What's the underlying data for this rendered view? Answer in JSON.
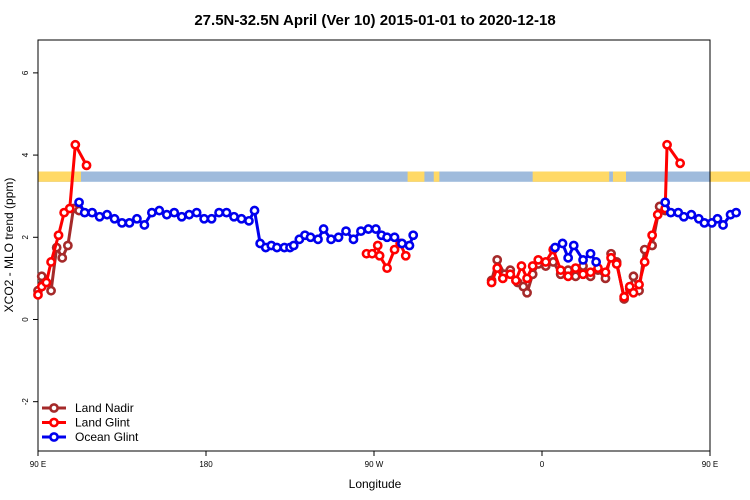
{
  "chart_data": {
    "type": "line",
    "title": "27.5N-32.5N April (Ver 10)   2015-01-01 to 2020-12-18",
    "xlabel": "Longitude",
    "ylabel": "XCO2 - MLO trend (ppm)",
    "xlim": [
      90,
      450
    ],
    "ylim": [
      -3.2,
      6.8
    ],
    "x_ticks": [
      {
        "value": 90,
        "label": "90 E"
      },
      {
        "value": 180,
        "label": "180"
      },
      {
        "value": 270,
        "label": "90 W"
      },
      {
        "value": 360,
        "label": "0"
      },
      {
        "value": 450,
        "label": "90 E"
      },
      {
        "value": 540,
        "label": "180"
      }
    ],
    "y_ticks": [
      {
        "value": -2,
        "label": "-2"
      },
      {
        "value": 0,
        "label": "0"
      },
      {
        "value": 2,
        "label": "2"
      },
      {
        "value": 4,
        "label": "4"
      },
      {
        "value": 6,
        "label": "6"
      }
    ],
    "land_mask_band": {
      "y_range": [
        3.35,
        3.6
      ],
      "land_color": "#ffd966",
      "ocean_color": "#9fbbdc",
      "land_segments": [
        [
          90,
          113
        ],
        [
          288,
          297
        ],
        [
          302,
          305
        ],
        [
          355,
          396
        ],
        [
          398,
          405
        ],
        [
          450,
          473
        ]
      ]
    },
    "legend_position": "bottom-left",
    "series": [
      {
        "name": "Land Nadir",
        "color": "#a52a2a",
        "points": [
          [
            [
              90,
              0.7
            ],
            [
              92,
              1.05
            ],
            [
              94.5,
              0.9
            ],
            [
              97,
              0.7
            ],
            [
              100,
              1.75
            ],
            [
              103,
              1.5
            ],
            [
              106,
              1.8
            ],
            [
              109,
              2.7
            ],
            [
              112,
              2.65
            ]
          ],
          [
            [
              333,
              0.95
            ],
            [
              336,
              1.45
            ],
            [
              340,
              1.1
            ],
            [
              343,
              1.2
            ],
            [
              347,
              0.9
            ],
            [
              350,
              0.8
            ],
            [
              352,
              0.65
            ],
            [
              355,
              1.1
            ],
            [
              358,
              1.35
            ],
            [
              362,
              1.3
            ],
            [
              366,
              1.4
            ],
            [
              370,
              1.1
            ],
            [
              374,
              1.2
            ],
            [
              378,
              1.05
            ],
            [
              382,
              1.3
            ],
            [
              386,
              1.05
            ],
            [
              390,
              1.2
            ],
            [
              394,
              1.0
            ],
            [
              397,
              1.6
            ],
            [
              400,
              1.4
            ],
            [
              404,
              0.5
            ],
            [
              407,
              0.75
            ],
            [
              409,
              1.05
            ],
            [
              412,
              0.7
            ],
            [
              415,
              1.7
            ],
            [
              419,
              1.8
            ],
            [
              423,
              2.75
            ],
            [
              426,
              2.65
            ]
          ]
        ]
      },
      {
        "name": "Land Glint",
        "color": "#ff0000",
        "points": [
          [
            [
              90,
              0.6
            ],
            [
              92,
              0.8
            ],
            [
              94.5,
              0.9
            ],
            [
              97,
              1.4
            ],
            [
              101,
              2.05
            ],
            [
              104,
              2.6
            ],
            [
              107,
              2.7
            ],
            [
              110,
              4.25
            ],
            [
              116,
              3.75
            ]
          ],
          [
            [
              266,
              1.6
            ],
            [
              269,
              1.6
            ],
            [
              272,
              1.8
            ],
            [
              273,
              1.55
            ],
            [
              277,
              1.25
            ],
            [
              281,
              1.7
            ],
            [
              284,
              1.85
            ],
            [
              287,
              1.55
            ]
          ],
          [
            [
              333,
              0.9
            ],
            [
              336,
              1.25
            ],
            [
              339,
              1.0
            ],
            [
              343,
              1.1
            ],
            [
              346,
              0.95
            ],
            [
              349,
              1.3
            ],
            [
              352,
              1.0
            ],
            [
              355,
              1.3
            ],
            [
              358,
              1.45
            ],
            [
              362,
              1.4
            ],
            [
              366,
              1.7
            ],
            [
              370,
              1.2
            ],
            [
              374,
              1.05
            ],
            [
              378,
              1.25
            ],
            [
              382,
              1.1
            ],
            [
              386,
              1.15
            ],
            [
              390,
              1.25
            ],
            [
              394,
              1.15
            ],
            [
              397,
              1.5
            ],
            [
              400,
              1.35
            ],
            [
              404,
              0.55
            ],
            [
              407,
              0.8
            ],
            [
              409,
              0.65
            ],
            [
              412,
              0.85
            ],
            [
              415,
              1.4
            ],
            [
              419,
              2.05
            ],
            [
              422,
              2.55
            ],
            [
              426,
              2.7
            ],
            [
              427,
              4.25
            ],
            [
              434,
              3.8
            ]
          ]
        ]
      },
      {
        "name": "Ocean Glint",
        "color": "#0000ee",
        "points": [
          [
            [
              112,
              2.85
            ],
            [
              115,
              2.6
            ],
            [
              119,
              2.6
            ],
            [
              123,
              2.5
            ],
            [
              127,
              2.55
            ],
            [
              131,
              2.45
            ],
            [
              135,
              2.35
            ],
            [
              139,
              2.35
            ],
            [
              143,
              2.45
            ],
            [
              147,
              2.3
            ],
            [
              151,
              2.6
            ],
            [
              155,
              2.65
            ],
            [
              159,
              2.55
            ],
            [
              163,
              2.6
            ],
            [
              167,
              2.5
            ],
            [
              171,
              2.55
            ],
            [
              175,
              2.6
            ],
            [
              179,
              2.45
            ],
            [
              183,
              2.45
            ],
            [
              187,
              2.6
            ],
            [
              191,
              2.6
            ],
            [
              195,
              2.5
            ],
            [
              199,
              2.45
            ],
            [
              203,
              2.4
            ],
            [
              206,
              2.65
            ],
            [
              209,
              1.85
            ],
            [
              212,
              1.75
            ],
            [
              215,
              1.8
            ],
            [
              218,
              1.75
            ],
            [
              222,
              1.75
            ],
            [
              225,
              1.75
            ],
            [
              227,
              1.8
            ],
            [
              230,
              1.95
            ],
            [
              233,
              2.05
            ],
            [
              236,
              2.0
            ],
            [
              240,
              1.95
            ],
            [
              243,
              2.2
            ],
            [
              247,
              1.95
            ],
            [
              251,
              2.0
            ],
            [
              255,
              2.15
            ],
            [
              259,
              1.95
            ],
            [
              263,
              2.15
            ],
            [
              267,
              2.2
            ],
            [
              271,
              2.2
            ],
            [
              274,
              2.05
            ],
            [
              277,
              2.0
            ],
            [
              281,
              2.0
            ],
            [
              285,
              1.85
            ],
            [
              289,
              1.8
            ],
            [
              291,
              2.05
            ]
          ],
          [
            [
              367,
              1.75
            ],
            [
              371,
              1.85
            ],
            [
              374,
              1.5
            ],
            [
              377,
              1.8
            ],
            [
              382,
              1.45
            ],
            [
              386,
              1.6
            ],
            [
              389,
              1.4
            ]
          ],
          [
            [
              426,
              2.85
            ],
            [
              429,
              2.6
            ],
            [
              433,
              2.6
            ],
            [
              436,
              2.5
            ],
            [
              440,
              2.55
            ],
            [
              444,
              2.45
            ],
            [
              447,
              2.35
            ],
            [
              451,
              2.35
            ],
            [
              454,
              2.45
            ],
            [
              457,
              2.3
            ],
            [
              461,
              2.55
            ],
            [
              464,
              2.6
            ]
          ]
        ]
      }
    ]
  }
}
